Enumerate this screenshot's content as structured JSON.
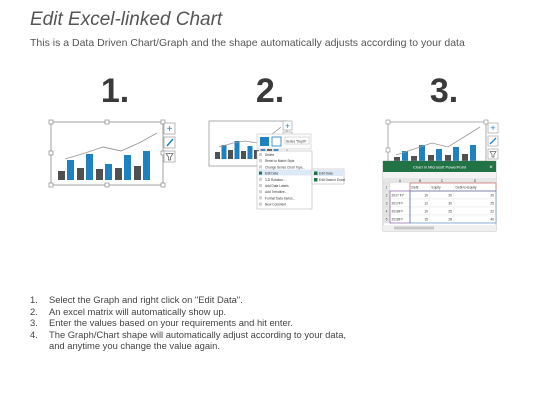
{
  "header": {
    "title": "Edit Excel-linked Chart",
    "subtitle": "This is a Data Driven Chart/Graph and the shape automatically adjusts according to your data"
  },
  "steps": [
    {
      "number": "1.",
      "text": "Select the Graph and right click on \"Edit Data\"."
    },
    {
      "number": "2.",
      "text": "An excel matrix will automatically show up."
    },
    {
      "number": "3.",
      "text": "Enter the values based on your requirements and hit enter."
    },
    {
      "number": "4.",
      "text": "The Graph/Chart shape will automatically adjust according to your data,"
    },
    {
      "number": "",
      "text": "and anytime you change the value again."
    }
  ],
  "big_numbers": [
    "1.",
    "2.",
    "3."
  ],
  "context_menu": {
    "items": [
      "Delete",
      "Reset to Match Style",
      "Change Series Chart Type...",
      "Edit Data",
      "3-D Rotation...",
      "Add Data Labels",
      "Add Trendline...",
      "Format Data Series...",
      "New Comment"
    ],
    "submenu": [
      "Edit Data",
      "Edit Data in Excel"
    ],
    "fill_label": "Fill",
    "outline_label": "Series \"Depth\""
  },
  "excel_window": {
    "title": "Chart in Microsoft PowerPoint",
    "columns": [
      "A",
      "B",
      "C",
      "D"
    ],
    "headers": [
      "",
      "Debt",
      "Equity",
      "Debt-to-Equity"
    ],
    "rows": [
      {
        "num": "1",
        "cells": [
          "",
          "Debt",
          "Equity",
          "Debt-to-Equity"
        ]
      },
      {
        "num": "2",
        "cells": [
          "2017 FY",
          "10",
          "20",
          "20"
        ]
      },
      {
        "num": "3",
        "cells": [
          "2017FY",
          "12",
          "30",
          "25"
        ]
      },
      {
        "num": "4",
        "cells": [
          "2018FY",
          "10",
          "25",
          "22"
        ]
      },
      {
        "num": "5",
        "cells": [
          "2018FY",
          "15",
          "28",
          "40"
        ]
      }
    ]
  },
  "colors": {
    "bar_dark": "#505050",
    "bar_blue": "#1f82c0",
    "excel_green": "#217346"
  }
}
